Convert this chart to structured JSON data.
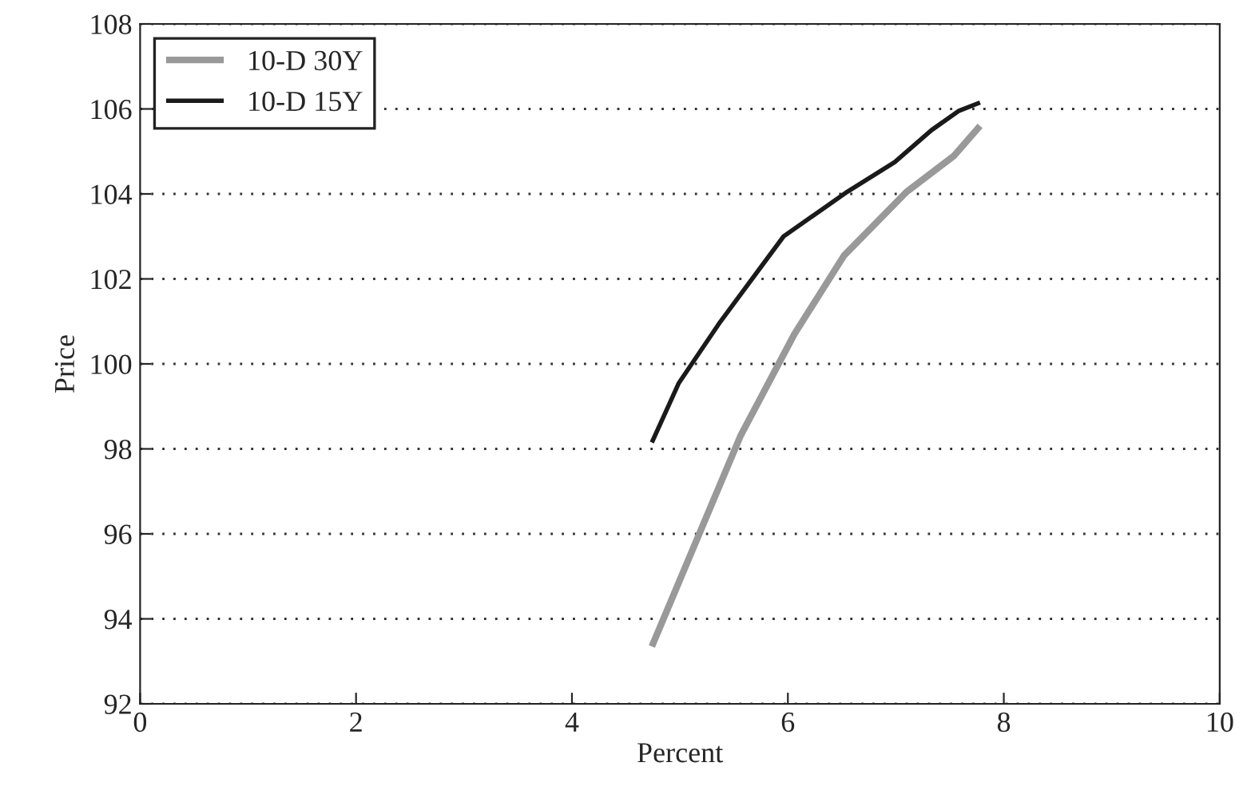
{
  "chart_data": {
    "type": "line",
    "xlabel": "Percent",
    "ylabel": "Price",
    "xlim": [
      0,
      10
    ],
    "xticks": [
      0,
      2,
      4,
      6,
      8,
      10
    ],
    "ylim": [
      92,
      108
    ],
    "yticks": [
      92,
      94,
      96,
      98,
      100,
      102,
      104,
      106,
      108
    ],
    "grid": "y",
    "legend": "top left",
    "series": [
      {
        "name": "10-D 30Y",
        "color": "#999999",
        "x": [
          4.74,
          5.56,
          6.06,
          6.52,
          7.1,
          7.54,
          7.78
        ],
        "values": [
          93.35,
          98.3,
          100.7,
          102.55,
          104.05,
          104.9,
          105.6
        ]
      },
      {
        "name": "10-D 15Y",
        "color": "#1a1a1a",
        "x": [
          4.74,
          4.99,
          5.36,
          5.96,
          6.55,
          6.99,
          7.33,
          7.58,
          7.78
        ],
        "values": [
          98.15,
          99.55,
          100.94,
          103.0,
          104.05,
          104.75,
          105.5,
          105.95,
          106.15
        ]
      }
    ]
  }
}
